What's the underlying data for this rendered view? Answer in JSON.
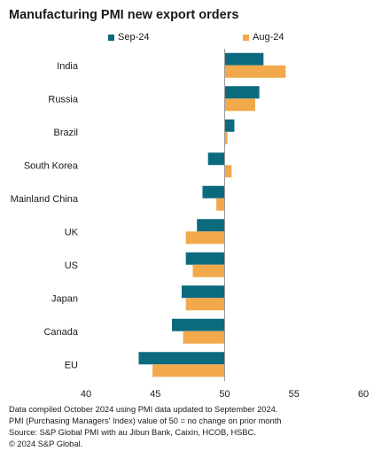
{
  "chart_data": {
    "type": "bar",
    "orientation": "horizontal",
    "title": "Manufacturing PMI new export orders",
    "categories": [
      "India",
      "Russia",
      "Brazil",
      "South Korea",
      "Mainland China",
      "UK",
      "US",
      "Japan",
      "Canada",
      "EU"
    ],
    "series": [
      {
        "name": "Sep-24",
        "color": "#0c6a7f",
        "values": [
          52.8,
          52.5,
          50.7,
          48.8,
          48.4,
          48.0,
          47.2,
          46.9,
          46.2,
          43.8
        ]
      },
      {
        "name": "Aug-24",
        "color": "#f2a94b",
        "values": [
          54.4,
          52.2,
          50.2,
          50.5,
          49.4,
          47.2,
          47.7,
          47.2,
          47.0,
          44.8
        ]
      }
    ],
    "xlim": [
      40,
      60
    ],
    "baseline": 50,
    "xticks": [
      "40",
      "45",
      "50",
      "55",
      "60"
    ],
    "grid": false,
    "legend_position": "top"
  },
  "footnotes": [
    "Data compiled October 2024 using PMI data updated to September 2024.",
    "PMI (Purchasing Managers' Index) value of 50 = no change on prior month",
    "Source: S&P Global PMI with au Jibun Bank, Caixin, HCOB, HSBC.",
    "© 2024 S&P Global."
  ]
}
